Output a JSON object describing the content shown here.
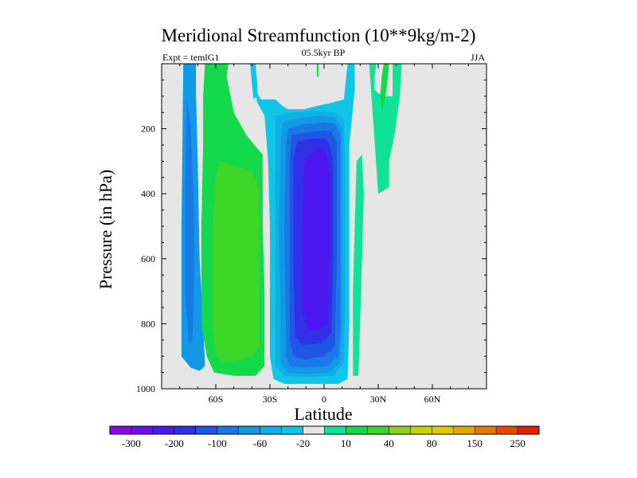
{
  "chart_data": {
    "type": "heatmap",
    "title": "Meridional Streamfunction (10**9kg/m-2)",
    "subtitle_left": "Expt = temlG1",
    "subtitle_center": "05.5kyr BP",
    "subtitle_right": "JJA",
    "xlabel": "Latitude",
    "ylabel": "Pressure (in hPa)",
    "x_range": [
      -90,
      90
    ],
    "y_range": [
      0,
      1000
    ],
    "y_inverted": true,
    "x_ticks": [
      {
        "value": -60,
        "label": "60S"
      },
      {
        "value": -30,
        "label": "30S"
      },
      {
        "value": 0,
        "label": "0"
      },
      {
        "value": 30,
        "label": "30N"
      },
      {
        "value": 60,
        "label": "60N"
      }
    ],
    "y_ticks": [
      {
        "value": 200,
        "label": "200"
      },
      {
        "value": 400,
        "label": "400"
      },
      {
        "value": 600,
        "label": "600"
      },
      {
        "value": 800,
        "label": "800"
      },
      {
        "value": 1000,
        "label": "1000"
      }
    ],
    "background_color": "#e6e6e6",
    "colorbar": {
      "labels": [
        "-300",
        "-200",
        "-100",
        "-60",
        "-20",
        "10",
        "40",
        "80",
        "150",
        "250"
      ],
      "colors": [
        "#8a08e8",
        "#6a0ef0",
        "#4c16ee",
        "#3030e6",
        "#1f56e6",
        "#1a78e6",
        "#1299e6",
        "#10b0e6",
        "#0fc6e8",
        "#e6e6e6",
        "#10e29a",
        "#14d94a",
        "#3fd62a",
        "#8cd41a",
        "#c8d400",
        "#e6c800",
        "#e6a800",
        "#e67800",
        "#e64a00",
        "#e61e00"
      ]
    },
    "regions": [
      {
        "name": "south-polar-cell-outer",
        "level": 6,
        "points": [
          [
            -78,
            0
          ],
          [
            -71,
            0
          ],
          [
            -71,
            90
          ],
          [
            -70,
            300
          ],
          [
            -69,
            600
          ],
          [
            -67,
            800
          ],
          [
            -66,
            930
          ],
          [
            -69,
            945
          ],
          [
            -74,
            935
          ],
          [
            -79,
            900
          ],
          [
            -79,
            500
          ]
        ]
      },
      {
        "name": "south-polar-cell-inner",
        "level": 5,
        "points": [
          [
            -76,
            110
          ],
          [
            -74,
            180
          ],
          [
            -72,
            450
          ],
          [
            -72,
            700
          ],
          [
            -73,
            850
          ],
          [
            -75,
            860
          ],
          [
            -77,
            700
          ],
          [
            -77,
            400
          ]
        ]
      },
      {
        "name": "ferrel-cell-outer",
        "level": 11,
        "points": [
          [
            -66,
            0
          ],
          [
            -53,
            0
          ],
          [
            -54,
            40
          ],
          [
            -50,
            150
          ],
          [
            -43,
            220
          ],
          [
            -34,
            280
          ],
          [
            -34,
            500
          ],
          [
            -33,
            700
          ],
          [
            -33,
            930
          ],
          [
            -38,
            960
          ],
          [
            -50,
            960
          ],
          [
            -61,
            950
          ],
          [
            -65,
            900
          ],
          [
            -68,
            800
          ],
          [
            -68,
            500
          ],
          [
            -67,
            250
          ],
          [
            -67,
            100
          ]
        ]
      },
      {
        "name": "ferrel-cell-inner",
        "level": 12,
        "points": [
          [
            -58,
            300
          ],
          [
            -53,
            310
          ],
          [
            -40,
            330
          ],
          [
            -36,
            380
          ],
          [
            -36,
            600
          ],
          [
            -36,
            870
          ],
          [
            -40,
            900
          ],
          [
            -55,
            920
          ],
          [
            -60,
            900
          ],
          [
            -62,
            800
          ],
          [
            -62,
            500
          ],
          [
            -60,
            350
          ]
        ]
      },
      {
        "name": "hadley-cell-l8",
        "level": 8,
        "points": [
          [
            -41,
            0
          ],
          [
            -38,
            0
          ],
          [
            -38,
            80
          ],
          [
            -35,
            110
          ],
          [
            -27,
            110
          ],
          [
            -23,
            130
          ],
          [
            -20,
            140
          ],
          [
            -11,
            140
          ],
          [
            -4,
            130
          ],
          [
            4,
            120
          ],
          [
            11,
            110
          ],
          [
            13,
            0
          ],
          [
            17,
            0
          ],
          [
            17,
            80
          ],
          [
            14,
            250
          ],
          [
            14,
            500
          ],
          [
            14,
            800
          ],
          [
            13,
            970
          ],
          [
            8,
            985
          ],
          [
            -5,
            985
          ],
          [
            -22,
            985
          ],
          [
            -28,
            970
          ],
          [
            -30,
            900
          ],
          [
            -30,
            500
          ],
          [
            -31,
            300
          ],
          [
            -33,
            160
          ],
          [
            -37,
            120
          ],
          [
            -38,
            90
          ]
        ]
      },
      {
        "name": "hadley-cell-l7",
        "level": 7,
        "points": [
          [
            -27,
            160
          ],
          [
            -18,
            150
          ],
          [
            -5,
            145
          ],
          [
            6,
            150
          ],
          [
            11,
            170
          ],
          [
            12,
            350
          ],
          [
            12,
            700
          ],
          [
            11,
            920
          ],
          [
            5,
            960
          ],
          [
            -10,
            965
          ],
          [
            -22,
            960
          ],
          [
            -27,
            930
          ],
          [
            -27,
            500
          ],
          [
            -27,
            250
          ]
        ]
      },
      {
        "name": "hadley-cell-l6",
        "level": 6,
        "points": [
          [
            -23,
            180
          ],
          [
            -12,
            165
          ],
          [
            -2,
            160
          ],
          [
            6,
            165
          ],
          [
            10,
            200
          ],
          [
            10,
            500
          ],
          [
            10,
            800
          ],
          [
            9,
            920
          ],
          [
            3,
            950
          ],
          [
            -10,
            955
          ],
          [
            -20,
            950
          ],
          [
            -24,
            920
          ],
          [
            -25,
            500
          ],
          [
            -24,
            250
          ]
        ]
      },
      {
        "name": "hadley-cell-l5",
        "level": 5,
        "points": [
          [
            -20,
            200
          ],
          [
            -10,
            185
          ],
          [
            0,
            180
          ],
          [
            6,
            185
          ],
          [
            9,
            220
          ],
          [
            9,
            500
          ],
          [
            9,
            800
          ],
          [
            8,
            900
          ],
          [
            2,
            930
          ],
          [
            -10,
            935
          ],
          [
            -19,
            930
          ],
          [
            -21,
            900
          ],
          [
            -22,
            500
          ],
          [
            -21,
            250
          ]
        ]
      },
      {
        "name": "hadley-cell-l4",
        "level": 4,
        "points": [
          [
            -18,
            220
          ],
          [
            -8,
            210
          ],
          [
            0,
            205
          ],
          [
            4,
            210
          ],
          [
            7,
            240
          ],
          [
            7,
            600
          ],
          [
            6,
            870
          ],
          [
            0,
            900
          ],
          [
            -10,
            910
          ],
          [
            -17,
            900
          ],
          [
            -19,
            850
          ],
          [
            -19,
            500
          ],
          [
            -19,
            300
          ]
        ]
      },
      {
        "name": "hadley-cell-l3",
        "level": 3,
        "points": [
          [
            -15,
            240
          ],
          [
            -6,
            230
          ],
          [
            0,
            230
          ],
          [
            3,
            245
          ],
          [
            5,
            300
          ],
          [
            5,
            600
          ],
          [
            4,
            830
          ],
          [
            -2,
            860
          ],
          [
            -12,
            865
          ],
          [
            -16,
            840
          ],
          [
            -17,
            600
          ],
          [
            -17,
            300
          ]
        ]
      },
      {
        "name": "hadley-cell-l2",
        "level": 2,
        "points": [
          [
            -11,
            300
          ],
          [
            -5,
            260
          ],
          [
            1,
            270
          ],
          [
            3,
            330
          ],
          [
            3,
            600
          ],
          [
            2,
            800
          ],
          [
            -3,
            820
          ],
          [
            -9,
            815
          ],
          [
            -12,
            760
          ],
          [
            -12,
            500
          ]
        ]
      },
      {
        "name": "upper-blob-a",
        "level": 8,
        "points": [
          [
            -41,
            0
          ],
          [
            -38,
            0
          ],
          [
            -37,
            60
          ],
          [
            -37,
            100
          ],
          [
            -39,
            110
          ],
          [
            -40,
            60
          ]
        ]
      },
      {
        "name": "upper-blob-b",
        "level": 11,
        "points": [
          [
            -4,
            0
          ],
          [
            -3,
            0
          ],
          [
            -3,
            40
          ],
          [
            -4,
            40
          ]
        ]
      },
      {
        "name": "northern-cell-outer",
        "level": 10,
        "points": [
          [
            25,
            0
          ],
          [
            29,
            0
          ],
          [
            28,
            40
          ],
          [
            28,
            80
          ],
          [
            32,
            100
          ],
          [
            38,
            100
          ],
          [
            38,
            0
          ],
          [
            43,
            0
          ],
          [
            42,
            100
          ],
          [
            39,
            220
          ],
          [
            36,
            300
          ],
          [
            36,
            380
          ],
          [
            30,
            400
          ]
        ]
      },
      {
        "name": "northern-cell-inner",
        "level": 11,
        "points": [
          [
            33,
            0
          ],
          [
            36,
            0
          ],
          [
            35,
            60
          ],
          [
            34,
            100
          ],
          [
            33,
            130
          ],
          [
            32,
            150
          ],
          [
            31,
            100
          ],
          [
            32,
            40
          ]
        ]
      },
      {
        "name": "northern-edge-lobe",
        "level": 10,
        "points": [
          [
            18,
            300
          ],
          [
            21,
            280
          ],
          [
            22,
            400
          ],
          [
            21,
            600
          ],
          [
            20,
            800
          ],
          [
            19,
            960
          ],
          [
            16,
            960
          ],
          [
            16,
            700
          ],
          [
            17,
            500
          ]
        ]
      }
    ]
  }
}
